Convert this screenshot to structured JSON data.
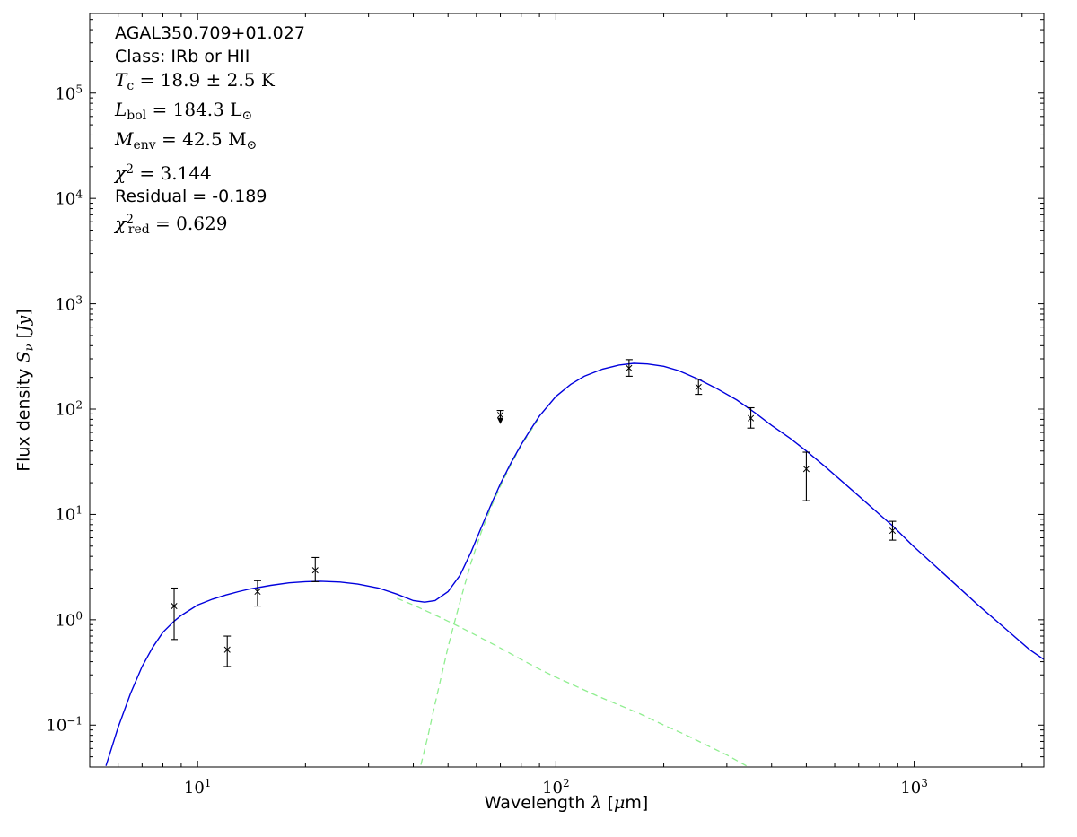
{
  "figure": {
    "background": "#ffffff"
  },
  "annotation": {
    "lines": [
      {
        "name": "source-name",
        "font": "sans",
        "segments": [
          {
            "t": "AGAL350.709+01.027"
          }
        ]
      },
      {
        "name": "class",
        "font": "sans",
        "segments": [
          {
            "t": "Class: IRb or HII"
          }
        ]
      },
      {
        "name": "dust-temperature",
        "font": "math",
        "segments": [
          {
            "t": "T",
            "it": true
          },
          {
            "t": "c",
            "sub": true
          },
          {
            "t": " = 18.9 ± 2.5 K"
          }
        ]
      },
      {
        "name": "bolometric-luminosity",
        "font": "math",
        "segments": [
          {
            "t": "L",
            "it": true
          },
          {
            "t": "bol",
            "sub": true
          },
          {
            "t": " = 184.3 L"
          },
          {
            "t": "⊙",
            "sub": true
          }
        ]
      },
      {
        "name": "envelope-mass",
        "font": "math",
        "segments": [
          {
            "t": "M",
            "it": true
          },
          {
            "t": "env",
            "sub": true
          },
          {
            "t": " = 42.5 M"
          },
          {
            "t": "⊙",
            "sub": true
          }
        ]
      },
      {
        "name": "chi-squared",
        "font": "math",
        "segments": [
          {
            "t": "χ",
            "it": true
          },
          {
            "t": "2",
            "sup": true
          },
          {
            "t": " = 3.144"
          }
        ]
      },
      {
        "name": "residual",
        "font": "sans",
        "segments": [
          {
            "t": "Residual = -0.189"
          }
        ]
      },
      {
        "name": "reduced-chi-squared",
        "font": "math",
        "segments": [
          {
            "t": "χ",
            "it": true
          },
          {
            "t": "2",
            "sup": true
          },
          {
            "t": "red",
            "sub": true,
            "pull": true
          },
          {
            "t": " = 0.629"
          }
        ]
      }
    ]
  },
  "chart_data": {
    "type": "line",
    "title": "",
    "x_scale": "log",
    "y_scale": "log",
    "xlim": [
      5,
      2300
    ],
    "ylim": [
      0.04,
      570000
    ],
    "grid": false,
    "legend": false,
    "xlabel_segments": [
      {
        "t": "Wavelength "
      },
      {
        "t": "λ",
        "it": true
      },
      {
        "t": " ["
      },
      {
        "t": "μ",
        "it": true
      },
      {
        "t": "m]"
      }
    ],
    "ylabel_segments": [
      {
        "t": "Flux density "
      },
      {
        "t": "S",
        "it": true
      },
      {
        "t": "ν",
        "it": true,
        "sub": true
      },
      {
        "t": " ["
      },
      {
        "t": "Jy",
        "it": true
      },
      {
        "t": "]"
      }
    ],
    "x_ticks": [
      {
        "value": 10,
        "base": "10",
        "exp": "1"
      },
      {
        "value": 100,
        "base": "10",
        "exp": "2"
      },
      {
        "value": 1000,
        "base": "10",
        "exp": "3"
      }
    ],
    "y_ticks": [
      {
        "value": 0.1,
        "base": "10",
        "exp": "−1"
      },
      {
        "value": 1,
        "base": "10",
        "exp": "0"
      },
      {
        "value": 10,
        "base": "10",
        "exp": "1"
      },
      {
        "value": 100,
        "base": "10",
        "exp": "2"
      },
      {
        "value": 1000,
        "base": "10",
        "exp": "3"
      },
      {
        "value": 10000,
        "base": "10",
        "exp": "4"
      },
      {
        "value": 100000,
        "base": "10",
        "exp": "5"
      }
    ],
    "series": [
      {
        "name": "warm-component",
        "color": "#90ee90",
        "style": "dashed",
        "x": [
          36,
          40,
          45,
          50,
          56,
          63,
          70,
          80,
          90,
          100,
          115,
          130,
          150,
          170,
          200,
          230,
          260,
          300,
          340
        ],
        "y": [
          1.6,
          1.38,
          1.15,
          0.97,
          0.8,
          0.65,
          0.54,
          0.42,
          0.34,
          0.285,
          0.23,
          0.19,
          0.155,
          0.13,
          0.1,
          0.081,
          0.066,
          0.052,
          0.041
        ]
      },
      {
        "name": "cold-component",
        "color": "#90ee90",
        "style": "dashed",
        "x": [
          42,
          44,
          46,
          48,
          50,
          52,
          55,
          58,
          62,
          66,
          70,
          75,
          80,
          85,
          90
        ],
        "y": [
          0.042,
          0.08,
          0.16,
          0.3,
          0.55,
          0.92,
          1.85,
          3.5,
          6.9,
          11.8,
          18.5,
          30,
          45,
          62,
          84
        ]
      },
      {
        "name": "total-model",
        "color": "#0000dd",
        "style": "solid",
        "x": [
          5.55,
          6,
          6.5,
          7,
          7.5,
          8,
          8.6,
          9,
          10,
          11,
          12,
          13,
          14,
          16,
          18,
          20,
          22,
          25,
          28,
          32,
          36,
          40,
          43,
          46,
          50,
          54,
          58,
          62,
          66,
          70,
          75,
          80,
          85,
          90,
          100,
          110,
          120,
          135,
          150,
          165,
          180,
          200,
          220,
          250,
          280,
          320,
          360,
          400,
          450,
          500,
          560,
          630,
          700,
          800,
          870,
          1000,
          1200,
          1500,
          1800,
          2100,
          2300
        ],
        "y": [
          0.041,
          0.095,
          0.2,
          0.36,
          0.55,
          0.76,
          0.97,
          1.1,
          1.38,
          1.57,
          1.72,
          1.85,
          1.96,
          2.12,
          2.24,
          2.3,
          2.32,
          2.28,
          2.18,
          2.0,
          1.75,
          1.52,
          1.47,
          1.52,
          1.85,
          2.65,
          4.4,
          7.6,
          12.5,
          19.5,
          31,
          46,
          64,
          86,
          132,
          172,
          205,
          240,
          262,
          272,
          268,
          255,
          232,
          192,
          158,
          122,
          92,
          70,
          53,
          40,
          29,
          20.5,
          15,
          10,
          7.8,
          4.9,
          2.8,
          1.4,
          0.82,
          0.52,
          0.42
        ]
      }
    ],
    "points": [
      {
        "x": 8.6,
        "y": 1.35,
        "ylo": 0.65,
        "yhi": 2.0
      },
      {
        "x": 12.1,
        "y": 0.52,
        "ylo": 0.36,
        "yhi": 0.7
      },
      {
        "x": 14.7,
        "y": 1.85,
        "ylo": 1.35,
        "yhi": 2.35
      },
      {
        "x": 21.3,
        "y": 2.95,
        "ylo": 2.3,
        "yhi": 3.9
      },
      {
        "x": 70,
        "y": 88,
        "ylo": 72,
        "yhi": 97,
        "upper_limit_arrow": true
      },
      {
        "x": 160,
        "y": 245,
        "ylo": 205,
        "yhi": 295
      },
      {
        "x": 250,
        "y": 162,
        "ylo": 138,
        "yhi": 192
      },
      {
        "x": 350,
        "y": 82,
        "ylo": 66,
        "yhi": 103
      },
      {
        "x": 500,
        "y": 27,
        "ylo": 13.5,
        "yhi": 39
      },
      {
        "x": 870,
        "y": 7.0,
        "ylo": 5.7,
        "yhi": 8.6
      }
    ],
    "marker": "x",
    "errorbar_color": "#000000",
    "frame_color": "#000000"
  }
}
